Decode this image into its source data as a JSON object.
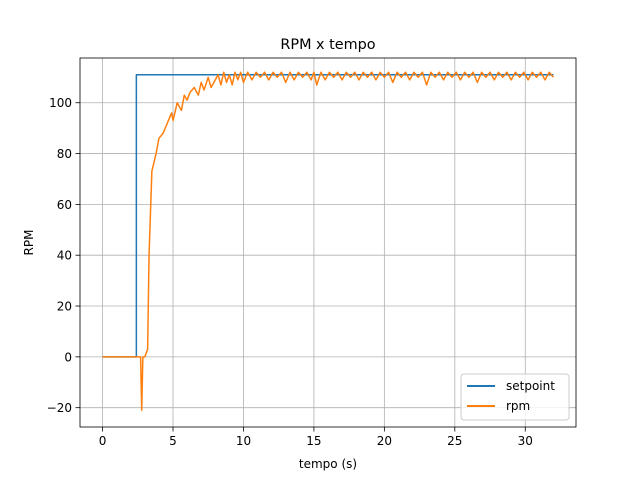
{
  "chart_data": {
    "type": "line",
    "title": "RPM x tempo",
    "xlabel": "tempo (s)",
    "ylabel": "RPM",
    "xlim": [
      -1.6,
      33.6
    ],
    "ylim": [
      -27.6,
      117.6
    ],
    "xticks": [
      0,
      5,
      10,
      15,
      20,
      25,
      30
    ],
    "yticks": [
      -20,
      0,
      20,
      40,
      60,
      80,
      100
    ],
    "xtick_labels": [
      "0",
      "5",
      "10",
      "15",
      "20",
      "25",
      "30"
    ],
    "ytick_labels": [
      "−20",
      "0",
      "20",
      "40",
      "60",
      "80",
      "100"
    ],
    "grid": true,
    "legend_position": "lower right",
    "series": [
      {
        "name": "setpoint",
        "color": "#1f77b4",
        "x": [
          0,
          2.4,
          2.4,
          15.0,
          15.0,
          32.0
        ],
        "y": [
          0,
          0,
          111,
          111,
          111,
          111
        ]
      },
      {
        "name": "rpm",
        "color": "#ff7f0e",
        "x": [
          0,
          2.5,
          2.7,
          2.78,
          2.86,
          3.0,
          3.2,
          3.3,
          3.5,
          3.8,
          4.0,
          4.3,
          4.6,
          4.9,
          5.0,
          5.3,
          5.6,
          5.8,
          6.0,
          6.2,
          6.5,
          6.8,
          7.0,
          7.2,
          7.5,
          7.7,
          8.0,
          8.2,
          8.4,
          8.6,
          8.8,
          9.0,
          9.2,
          9.4,
          9.6,
          9.8,
          10.0,
          10.3,
          10.6,
          10.9,
          11.2,
          11.5,
          11.8,
          12.1,
          12.4,
          12.7,
          13.0,
          13.3,
          13.6,
          13.9,
          14.2,
          14.5,
          14.8,
          15.0,
          15.2,
          15.5,
          15.8,
          16.1,
          16.4,
          16.7,
          17.0,
          17.3,
          17.6,
          17.9,
          18.2,
          18.5,
          18.8,
          19.1,
          19.4,
          19.7,
          20.0,
          20.3,
          20.6,
          20.9,
          21.2,
          21.5,
          21.8,
          22.1,
          22.4,
          22.7,
          23.0,
          23.3,
          23.6,
          23.9,
          24.2,
          24.5,
          24.8,
          25.1,
          25.4,
          25.7,
          26.0,
          26.3,
          26.6,
          26.9,
          27.2,
          27.5,
          27.8,
          28.1,
          28.4,
          28.7,
          29.0,
          29.3,
          29.6,
          29.9,
          30.2,
          30.5,
          30.8,
          31.1,
          31.4,
          31.7,
          32.0
        ],
        "y": [
          0,
          0,
          0,
          -21,
          0,
          0,
          3,
          40,
          73,
          80,
          86,
          88,
          92,
          96,
          93,
          100,
          97,
          103,
          101,
          104,
          106,
          103,
          108,
          105,
          110,
          106,
          109,
          111,
          107,
          112,
          108,
          111,
          107,
          112,
          109,
          112,
          108,
          112,
          109,
          112,
          110,
          112,
          109,
          112,
          110,
          112,
          108,
          112,
          109,
          112,
          110,
          112,
          109,
          112,
          107,
          112,
          109,
          112,
          110,
          112,
          109,
          112,
          110,
          112,
          109,
          112,
          110,
          112,
          109,
          112,
          110,
          112,
          108,
          112,
          110,
          112,
          109,
          112,
          110,
          112,
          107,
          112,
          110,
          112,
          109,
          112,
          110,
          112,
          109,
          112,
          110,
          112,
          108,
          112,
          110,
          112,
          109,
          112,
          110,
          112,
          109,
          112,
          110,
          112,
          109,
          112,
          110,
          112,
          109,
          112,
          110
        ]
      }
    ]
  }
}
